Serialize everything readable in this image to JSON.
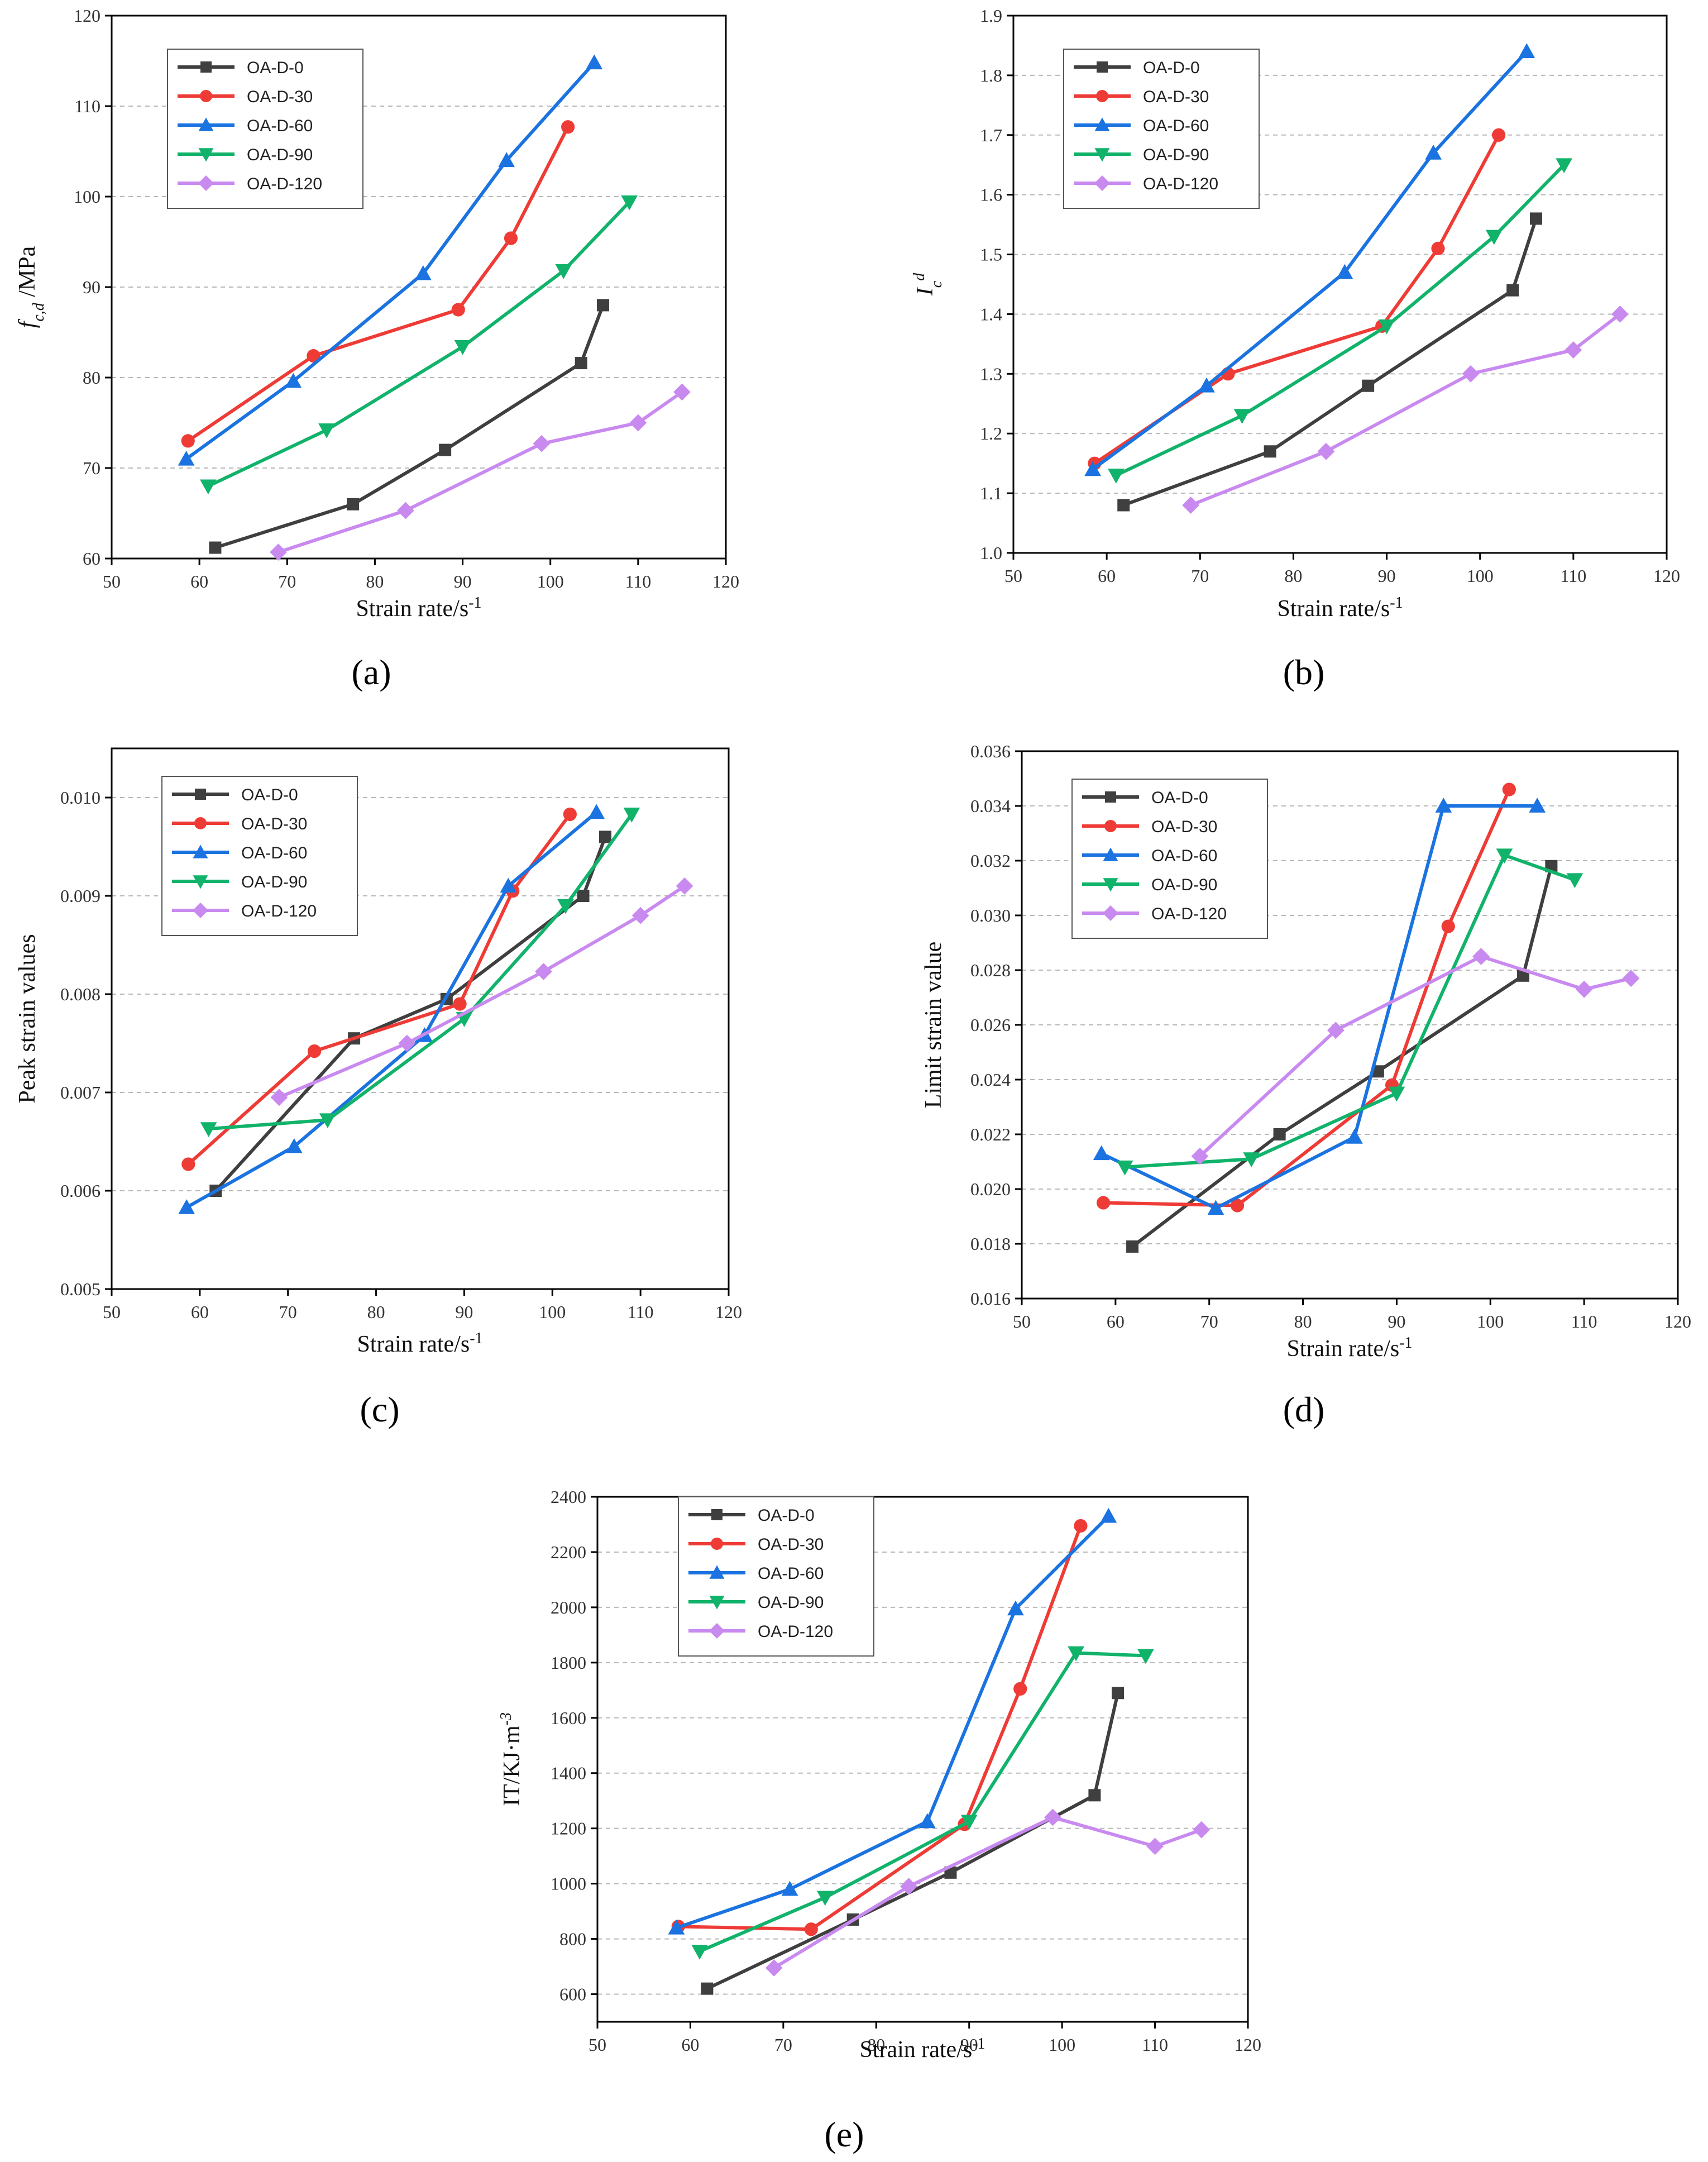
{
  "series_styles": [
    {
      "name": "OA-D-0",
      "color": "#3f3f3f",
      "marker": "square"
    },
    {
      "name": "OA-D-30",
      "color": "#ef3b36",
      "marker": "circle"
    },
    {
      "name": "OA-D-60",
      "color": "#1a73e0",
      "marker": "triangle-up"
    },
    {
      "name": "OA-D-90",
      "color": "#11b36b",
      "marker": "triangle-down"
    },
    {
      "name": "OA-D-120",
      "color": "#c98af0",
      "marker": "diamond"
    }
  ],
  "chart_data": [
    {
      "panel": "(a)",
      "type": "line",
      "xlabel": "Strain rate/s",
      "xlabel_sup": "-1",
      "ylabel": "f",
      "ylabel_sub": "c,d",
      "ylabel_suffix": " /MPa",
      "xlim": [
        50,
        120
      ],
      "ylim": [
        60,
        120
      ],
      "xticks": [
        "50",
        "60",
        "70",
        "80",
        "90",
        "100",
        "110",
        "120"
      ],
      "yticks": [
        "60",
        "70",
        "80",
        "90",
        "100",
        "110",
        "120"
      ],
      "legend_position": "top-left",
      "series": [
        {
          "name": "OA-D-0",
          "x": [
            61.8,
            77.5,
            88,
            103.5,
            106
          ],
          "y": [
            61.2,
            66,
            72,
            81.6,
            88
          ]
        },
        {
          "name": "OA-D-30",
          "x": [
            58.7,
            73,
            89.5,
            95.5,
            102
          ],
          "y": [
            73,
            82.4,
            87.5,
            95.4,
            107.7
          ]
        },
        {
          "name": "OA-D-60",
          "x": [
            58.5,
            70.7,
            85.5,
            95,
            105
          ],
          "y": [
            71,
            79.6,
            91.5,
            104,
            114.8
          ]
        },
        {
          "name": "OA-D-90",
          "x": [
            61,
            74.5,
            90,
            101.5,
            109
          ],
          "y": [
            68,
            74.2,
            83.4,
            91.8,
            99.4
          ]
        },
        {
          "name": "OA-D-120",
          "x": [
            69,
            83.5,
            99,
            110,
            115
          ],
          "y": [
            60.7,
            65.3,
            72.7,
            75,
            78.4
          ]
        }
      ]
    },
    {
      "panel": "(b)",
      "type": "line",
      "xlabel": "Strain rate/s",
      "xlabel_sup": "-1",
      "ylabel": "I",
      "ylabel_sub": "c",
      "ylabel_sup": "d",
      "xlim": [
        50,
        120
      ],
      "ylim": [
        1.0,
        1.9
      ],
      "xticks": [
        "50",
        "60",
        "70",
        "80",
        "90",
        "100",
        "110",
        "120"
      ],
      "yticks": [
        "1.0",
        "1.1",
        "1.2",
        "1.3",
        "1.4",
        "1.5",
        "1.6",
        "1.7",
        "1.8",
        "1.9"
      ],
      "legend_position": "top-left",
      "series": [
        {
          "name": "OA-D-0",
          "x": [
            61.8,
            77.5,
            88,
            103.5,
            106
          ],
          "y": [
            1.08,
            1.17,
            1.28,
            1.44,
            1.56
          ]
        },
        {
          "name": "OA-D-30",
          "x": [
            58.7,
            73,
            89.5,
            95.5,
            102
          ],
          "y": [
            1.15,
            1.3,
            1.38,
            1.51,
            1.7
          ]
        },
        {
          "name": "OA-D-60",
          "x": [
            58.5,
            70.7,
            85.5,
            95,
            105
          ],
          "y": [
            1.14,
            1.28,
            1.47,
            1.67,
            1.84
          ]
        },
        {
          "name": "OA-D-90",
          "x": [
            61,
            74.5,
            90,
            101.5,
            109
          ],
          "y": [
            1.13,
            1.23,
            1.38,
            1.53,
            1.65
          ]
        },
        {
          "name": "OA-D-120",
          "x": [
            69,
            83.5,
            99,
            110,
            115
          ],
          "y": [
            1.08,
            1.17,
            1.3,
            1.34,
            1.4
          ]
        }
      ]
    },
    {
      "panel": "(c)",
      "type": "line",
      "xlabel": "Strain rate/s",
      "xlabel_sup": "-1",
      "ylabel": "Peak strain values",
      "xlim": [
        50,
        120
      ],
      "ylim": [
        0.005,
        0.0105
      ],
      "xticks": [
        "50",
        "60",
        "70",
        "80",
        "90",
        "100",
        "110",
        "120"
      ],
      "yticks": [
        "0.005",
        "0.006",
        "0.007",
        "0.008",
        "0.009",
        "0.010"
      ],
      "yticks_values": [
        0.005,
        0.006,
        0.007,
        0.008,
        0.009,
        0.01
      ],
      "legend_position": "top-left",
      "series": [
        {
          "name": "OA-D-0",
          "x": [
            61.8,
            77.5,
            88,
            103.5,
            106
          ],
          "y": [
            0.006,
            0.00755,
            0.00795,
            0.009,
            0.0096
          ]
        },
        {
          "name": "OA-D-30",
          "x": [
            58.7,
            73,
            89.5,
            95.5,
            102
          ],
          "y": [
            0.00627,
            0.00742,
            0.0079,
            0.00905,
            0.00983
          ]
        },
        {
          "name": "OA-D-60",
          "x": [
            58.5,
            70.7,
            85.5,
            95,
            105
          ],
          "y": [
            0.00583,
            0.00645,
            0.00758,
            0.0091,
            0.00985
          ]
        },
        {
          "name": "OA-D-90",
          "x": [
            61,
            74.5,
            90,
            101.5,
            109
          ],
          "y": [
            0.00663,
            0.00672,
            0.00775,
            0.0089,
            0.00983
          ]
        },
        {
          "name": "OA-D-120",
          "x": [
            69,
            83.5,
            99,
            110,
            115
          ],
          "y": [
            0.00695,
            0.0075,
            0.00823,
            0.0088,
            0.0091
          ]
        }
      ]
    },
    {
      "panel": "(d)",
      "type": "line",
      "xlabel": "Strain rate/s",
      "xlabel_sup": "-1",
      "ylabel": "Limit strain value",
      "xlim": [
        50,
        120
      ],
      "ylim": [
        0.016,
        0.036
      ],
      "xticks": [
        "50",
        "60",
        "70",
        "80",
        "90",
        "100",
        "110",
        "120"
      ],
      "yticks": [
        "0.016",
        "0.018",
        "0.020",
        "0.022",
        "0.024",
        "0.026",
        "0.028",
        "0.030",
        "0.032",
        "0.034",
        "0.036"
      ],
      "yticks_values": [
        0.016,
        0.018,
        0.02,
        0.022,
        0.024,
        0.026,
        0.028,
        0.03,
        0.032,
        0.034,
        0.036
      ],
      "legend_position": "top-left",
      "series": [
        {
          "name": "OA-D-0",
          "x": [
            61.8,
            77.5,
            88,
            103.5,
            106.5
          ],
          "y": [
            0.0179,
            0.022,
            0.0243,
            0.0278,
            0.0318
          ]
        },
        {
          "name": "OA-D-30",
          "x": [
            58.7,
            73,
            89.5,
            95.5,
            102
          ],
          "y": [
            0.0195,
            0.0194,
            0.0238,
            0.0296,
            0.0346
          ]
        },
        {
          "name": "OA-D-60",
          "x": [
            58.5,
            70.7,
            85.5,
            95,
            105
          ],
          "y": [
            0.0213,
            0.0193,
            0.0219,
            0.034,
            0.034
          ]
        },
        {
          "name": "OA-D-90",
          "x": [
            61,
            74.5,
            90,
            101.5,
            109
          ],
          "y": [
            0.0208,
            0.0211,
            0.0235,
            0.0322,
            0.0313
          ]
        },
        {
          "name": "OA-D-120",
          "x": [
            69,
            83.5,
            99,
            110,
            115
          ],
          "y": [
            0.0212,
            0.0258,
            0.0285,
            0.0273,
            0.0277
          ]
        }
      ]
    },
    {
      "panel": "(e)",
      "type": "line",
      "xlabel": "Strain rate/s",
      "xlabel_sup": "-1",
      "ylabel": "IT/KJ·m",
      "ylabel_sup": "-3",
      "xlim": [
        50,
        120
      ],
      "ylim": [
        500,
        2400
      ],
      "xticks": [
        "50",
        "60",
        "70",
        "80",
        "90",
        "100",
        "110",
        "120"
      ],
      "yticks": [
        "600",
        "800",
        "1000",
        "1200",
        "1400",
        "1600",
        "1800",
        "2000",
        "2200",
        "2400"
      ],
      "legend_position": "top-left",
      "series": [
        {
          "name": "OA-D-0",
          "x": [
            61.8,
            77.5,
            88,
            103.5,
            106
          ],
          "y": [
            620,
            870,
            1040,
            1320,
            1690
          ]
        },
        {
          "name": "OA-D-30",
          "x": [
            58.7,
            73,
            89.5,
            95.5,
            102
          ],
          "y": [
            845,
            835,
            1215,
            1705,
            2295
          ]
        },
        {
          "name": "OA-D-60",
          "x": [
            58.5,
            70.7,
            85.5,
            95,
            105
          ],
          "y": [
            840,
            980,
            1225,
            1995,
            2330
          ]
        },
        {
          "name": "OA-D-90",
          "x": [
            61,
            74.5,
            90,
            101.5,
            109
          ],
          "y": [
            755,
            950,
            1225,
            1835,
            1825
          ]
        },
        {
          "name": "OA-D-120",
          "x": [
            69,
            83.5,
            99,
            110,
            115
          ],
          "y": [
            695,
            990,
            1240,
            1135,
            1195
          ]
        }
      ]
    }
  ]
}
